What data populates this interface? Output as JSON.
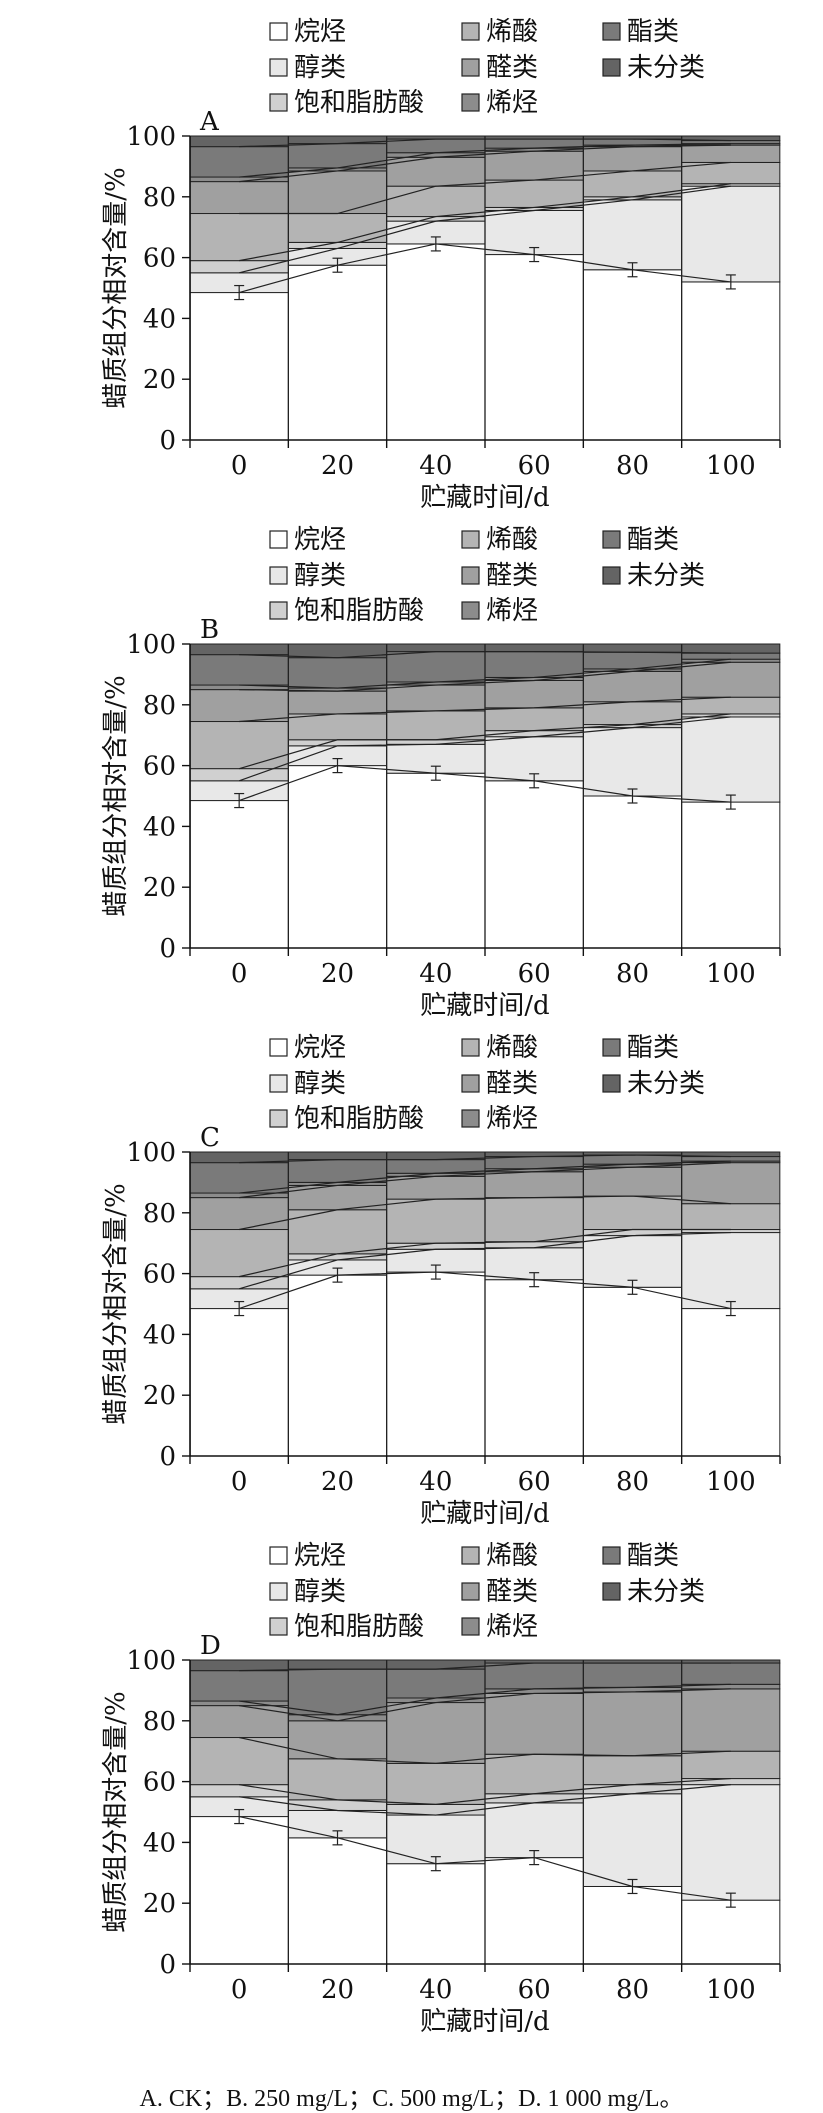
{
  "chart_data": [
    {
      "type": "bar",
      "panel_label": "A",
      "xlabel": "贮藏时间/d",
      "ylabel": "蜡质组分相对含量/%",
      "ylim": [
        0,
        100
      ],
      "yticks": [
        0,
        20,
        40,
        60,
        80,
        100
      ],
      "categories": [
        "0",
        "20",
        "40",
        "60",
        "80",
        "100"
      ],
      "legend": [
        "烷烃",
        "烯酸",
        "酯类",
        "醇类",
        "醛类",
        "未分类",
        "饱和脂肪酸",
        "烯烃"
      ],
      "series": [
        {
          "name": "烷烃",
          "values": [
            48.5,
            57.5,
            64.5,
            61.0,
            56.0,
            52.0
          ]
        },
        {
          "name": "醇类",
          "values": [
            6.5,
            5.5,
            7.5,
            14.5,
            23.0,
            31.5
          ]
        },
        {
          "name": "饱和脂肪酸",
          "values": [
            4.0,
            2.0,
            1.5,
            1.0,
            1.0,
            0.8
          ]
        },
        {
          "name": "烯酸",
          "values": [
            15.5,
            9.5,
            10.0,
            9.0,
            8.5,
            7.0
          ]
        },
        {
          "name": "醛类",
          "values": [
            10.5,
            14.0,
            9.5,
            9.5,
            8.0,
            5.7
          ]
        },
        {
          "name": "烯烃",
          "values": [
            1.5,
            1.0,
            1.5,
            1.0,
            0.5,
            0.5
          ]
        },
        {
          "name": "酯类",
          "values": [
            10.0,
            8.0,
            4.5,
            3.0,
            2.0,
            1.0
          ]
        },
        {
          "name": "未分类",
          "values": [
            3.5,
            2.5,
            1.0,
            1.0,
            1.0,
            1.5
          ]
        }
      ]
    },
    {
      "type": "bar",
      "panel_label": "B",
      "xlabel": "贮藏时间/d",
      "ylabel": "蜡质组分相对含量/%",
      "ylim": [
        0,
        100
      ],
      "yticks": [
        0,
        20,
        40,
        60,
        80,
        100
      ],
      "categories": [
        "0",
        "20",
        "40",
        "60",
        "80",
        "100"
      ],
      "legend": [
        "烷烃",
        "烯酸",
        "酯类",
        "醇类",
        "醛类",
        "未分类",
        "饱和脂肪酸",
        "烯烃"
      ],
      "series": [
        {
          "name": "烷烃",
          "values": [
            48.5,
            60.0,
            57.5,
            55.0,
            50.0,
            48.0
          ]
        },
        {
          "name": "醇类",
          "values": [
            6.5,
            6.5,
            9.5,
            14.5,
            22.5,
            28.0
          ]
        },
        {
          "name": "饱和脂肪酸",
          "values": [
            4.0,
            2.0,
            1.5,
            2.0,
            1.0,
            1.0
          ]
        },
        {
          "name": "烯酸",
          "values": [
            15.5,
            8.5,
            9.5,
            7.5,
            7.5,
            5.5
          ]
        },
        {
          "name": "醛类",
          "values": [
            10.5,
            7.5,
            8.5,
            9.0,
            10.0,
            11.5
          ]
        },
        {
          "name": "烯烃",
          "values": [
            1.5,
            1.0,
            1.0,
            1.0,
            0.8,
            1.0
          ]
        },
        {
          "name": "酯类",
          "values": [
            10.0,
            10.0,
            10.0,
            8.5,
            5.5,
            2.0
          ]
        },
        {
          "name": "未分类",
          "values": [
            3.5,
            4.5,
            2.5,
            2.5,
            2.7,
            3.0
          ]
        }
      ]
    },
    {
      "type": "bar",
      "panel_label": "C",
      "xlabel": "贮藏时间/d",
      "ylabel": "蜡质组分相对含量/%",
      "ylim": [
        0,
        100
      ],
      "yticks": [
        0,
        20,
        40,
        60,
        80,
        100
      ],
      "categories": [
        "0",
        "20",
        "40",
        "60",
        "80",
        "100"
      ],
      "legend": [
        "烷烃",
        "烯酸",
        "酯类",
        "醇类",
        "醛类",
        "未分类",
        "饱和脂肪酸",
        "烯烃"
      ],
      "series": [
        {
          "name": "烷烃",
          "values": [
            48.5,
            59.5,
            60.5,
            58.0,
            55.5,
            48.5
          ]
        },
        {
          "name": "醇类",
          "values": [
            6.5,
            5.0,
            7.5,
            10.5,
            17.0,
            25.0
          ]
        },
        {
          "name": "饱和脂肪酸",
          "values": [
            4.0,
            2.0,
            2.0,
            2.0,
            2.0,
            1.0
          ]
        },
        {
          "name": "烯酸",
          "values": [
            15.5,
            14.5,
            14.5,
            14.5,
            11.0,
            8.5
          ]
        },
        {
          "name": "醛类",
          "values": [
            10.5,
            8.0,
            7.5,
            8.5,
            9.5,
            13.5
          ]
        },
        {
          "name": "烯烃",
          "values": [
            1.5,
            1.0,
            1.0,
            1.0,
            1.0,
            0.5
          ]
        },
        {
          "name": "酯类",
          "values": [
            10.0,
            7.5,
            4.5,
            4.0,
            3.0,
            1.5
          ]
        },
        {
          "name": "未分类",
          "values": [
            3.5,
            2.5,
            2.5,
            1.5,
            1.0,
            1.5
          ]
        }
      ]
    },
    {
      "type": "bar",
      "panel_label": "D",
      "xlabel": "贮藏时间/d",
      "ylabel": "蜡质组分相对含量/%",
      "ylim": [
        0,
        100
      ],
      "yticks": [
        0,
        20,
        40,
        60,
        80,
        100
      ],
      "categories": [
        "0",
        "20",
        "40",
        "60",
        "80",
        "100"
      ],
      "legend": [
        "烷烃",
        "烯酸",
        "酯类",
        "醇类",
        "醛类",
        "未分类",
        "饱和脂肪酸",
        "烯烃"
      ],
      "series": [
        {
          "name": "烷烃",
          "values": [
            48.5,
            41.5,
            33.0,
            35.0,
            25.5,
            21.0
          ]
        },
        {
          "name": "醇类",
          "values": [
            6.5,
            9.0,
            16.0,
            18.0,
            30.5,
            38.0
          ]
        },
        {
          "name": "饱和脂肪酸",
          "values": [
            4.0,
            3.5,
            3.5,
            3.0,
            3.0,
            2.0
          ]
        },
        {
          "name": "烯酸",
          "values": [
            15.5,
            13.5,
            13.5,
            13.0,
            9.5,
            9.0
          ]
        },
        {
          "name": "醛类",
          "values": [
            10.5,
            12.5,
            20.0,
            20.0,
            21.0,
            20.5
          ]
        },
        {
          "name": "烯烃",
          "values": [
            1.5,
            2.0,
            1.5,
            1.5,
            1.5,
            1.5
          ]
        },
        {
          "name": "酯类",
          "values": [
            10.0,
            15.0,
            9.5,
            8.5,
            8.0,
            7.0
          ]
        },
        {
          "name": "未分类",
          "values": [
            3.5,
            3.0,
            3.0,
            1.0,
            1.0,
            1.0
          ]
        }
      ]
    }
  ],
  "series_colors": {
    "烷烃": "#ffffff",
    "醇类": "#e8e8e8",
    "饱和脂肪酸": "#d0d0d0",
    "烯酸": "#b4b4b4",
    "醛类": "#a0a0a0",
    "烯烃": "#8c8c8c",
    "酯类": "#7a7a7a",
    "未分类": "#646464"
  },
  "caption": "A. CK；B. 250 mg/L；C. 500 mg/L；D. 1 000 mg/L。"
}
